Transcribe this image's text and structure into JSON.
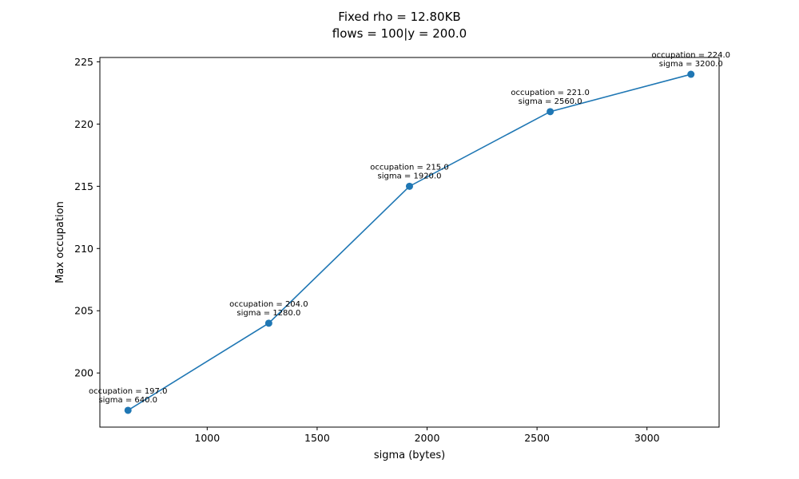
{
  "chart_data": {
    "type": "line",
    "title": "Fixed rho = 12.80KB",
    "subtitle": "flows = 100|y = 200.0",
    "xlabel": "sigma (bytes)",
    "ylabel": "Max occupation",
    "x": [
      640,
      1280,
      1920,
      2560,
      3200
    ],
    "y": [
      197,
      204,
      215,
      221,
      224
    ],
    "xlim": [
      512,
      3328
    ],
    "ylim": [
      195.65,
      225.35
    ],
    "xticks": [
      1000,
      1500,
      2000,
      2500,
      3000
    ],
    "yticks": [
      200,
      205,
      210,
      215,
      220,
      225
    ],
    "annotations": [
      [
        "occupation = 197.0",
        "sigma = 640.0"
      ],
      [
        "occupation = 204.0",
        "sigma = 1280.0"
      ],
      [
        "occupation = 215.0",
        "sigma = 1920.0"
      ],
      [
        "occupation = 221.0",
        "sigma = 2560.0"
      ],
      [
        "occupation = 224.0",
        "sigma = 3200.0"
      ]
    ],
    "color": "#1f77b4",
    "grid": false,
    "marker": "circle"
  }
}
